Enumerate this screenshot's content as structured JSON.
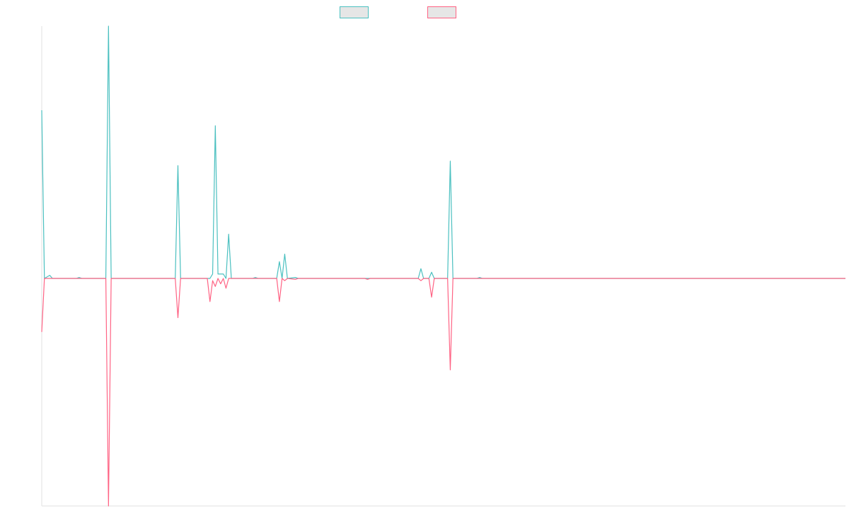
{
  "chart_data": {
    "type": "line",
    "title": "",
    "xlabel": "",
    "ylabel": "",
    "legend_placement": "top-center",
    "grid": false,
    "legend_fill": "#e6e6e6",
    "xlim": [
      0,
      301
    ],
    "ylim": [
      -5.1,
      5.7
    ],
    "series": [
      {
        "color": "#4bc0c0",
        "points": [
          [
            0,
            3.8
          ],
          [
            1,
            0.0
          ],
          [
            3,
            0.07
          ],
          [
            4,
            0.0
          ],
          [
            13,
            0.0
          ],
          [
            14,
            0.02
          ],
          [
            15,
            0.0
          ],
          [
            24,
            0.0
          ],
          [
            25,
            5.7
          ],
          [
            26,
            0.0
          ],
          [
            50,
            0.0
          ],
          [
            51,
            2.55
          ],
          [
            52,
            0.0
          ],
          [
            62,
            0.0
          ],
          [
            63,
            0.0
          ],
          [
            64,
            0.1
          ],
          [
            65,
            3.45
          ],
          [
            66,
            0.1
          ],
          [
            67,
            0.1
          ],
          [
            68,
            0.1
          ],
          [
            69,
            0.0
          ],
          [
            70,
            1.0
          ],
          [
            71,
            0.0
          ],
          [
            79,
            0.0
          ],
          [
            80,
            0.02
          ],
          [
            81,
            0.0
          ],
          [
            88,
            0.0
          ],
          [
            89,
            0.38
          ],
          [
            90,
            0.0
          ],
          [
            91,
            0.55
          ],
          [
            92,
            0.0
          ],
          [
            95,
            0.02
          ],
          [
            96,
            0.0
          ],
          [
            141,
            0.0
          ],
          [
            142,
            0.22
          ],
          [
            143,
            0.0
          ],
          [
            145,
            0.0
          ],
          [
            146,
            0.14
          ],
          [
            147,
            0.0
          ],
          [
            152,
            0.0
          ],
          [
            153,
            2.65
          ],
          [
            154,
            0.0
          ],
          [
            163,
            0.0
          ],
          [
            164,
            0.02
          ],
          [
            165,
            0.0
          ],
          [
            301,
            0.0
          ]
        ]
      },
      {
        "color": "#ff6384",
        "points": [
          [
            0,
            -1.2
          ],
          [
            1,
            0.0
          ],
          [
            24,
            0.0
          ],
          [
            25,
            -5.1
          ],
          [
            26,
            0.0
          ],
          [
            50,
            0.0
          ],
          [
            51,
            -0.88
          ],
          [
            52,
            0.0
          ],
          [
            62,
            0.0
          ],
          [
            63,
            -0.52
          ],
          [
            64,
            -0.05
          ],
          [
            65,
            -0.18
          ],
          [
            66,
            0.0
          ],
          [
            67,
            -0.12
          ],
          [
            68,
            0.0
          ],
          [
            69,
            -0.22
          ],
          [
            70,
            0.0
          ],
          [
            88,
            0.0
          ],
          [
            89,
            -0.52
          ],
          [
            90,
            0.0
          ],
          [
            91,
            -0.05
          ],
          [
            92,
            0.0
          ],
          [
            95,
            -0.02
          ],
          [
            96,
            0.0
          ],
          [
            121,
            0.0
          ],
          [
            122,
            -0.02
          ],
          [
            123,
            0.0
          ],
          [
            141,
            0.0
          ],
          [
            142,
            -0.05
          ],
          [
            143,
            0.0
          ],
          [
            145,
            0.0
          ],
          [
            146,
            -0.42
          ],
          [
            147,
            0.0
          ],
          [
            152,
            0.0
          ],
          [
            153,
            -2.05
          ],
          [
            154,
            0.0
          ],
          [
            301,
            0.0
          ]
        ]
      }
    ]
  }
}
